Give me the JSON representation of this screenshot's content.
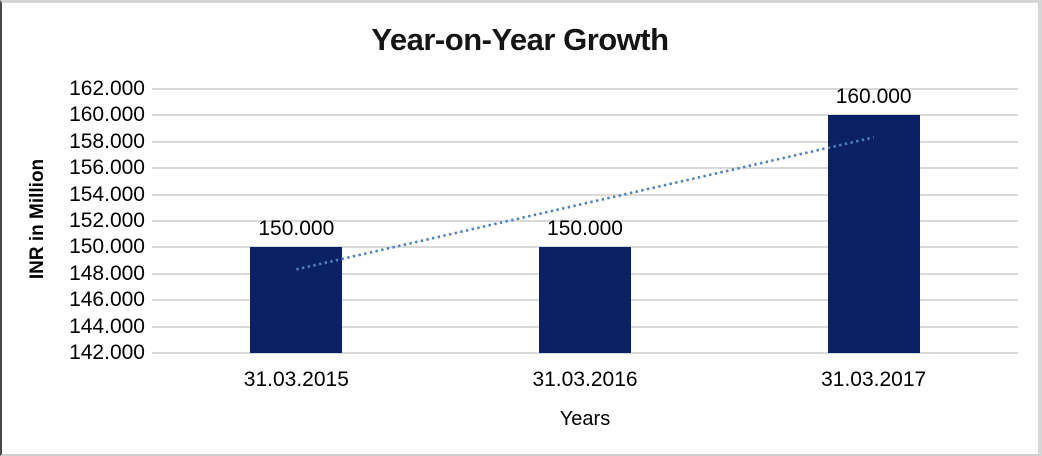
{
  "chart_data": {
    "type": "bar",
    "title": "Year-on-Year Growth",
    "xlabel": "Years",
    "ylabel": "INR in Million",
    "categories": [
      "31.03.2015",
      "31.03.2016",
      "31.03.2017"
    ],
    "values": [
      150000,
      150000,
      160000
    ],
    "data_labels": [
      "150.000",
      "150.000",
      "160.000"
    ],
    "ylim": [
      142000,
      162000
    ],
    "ytick_step": 2000,
    "ytick_labels": [
      "162.000",
      "160.000",
      "158.000",
      "156.000",
      "154.000",
      "152.000",
      "150.000",
      "148.000",
      "146.000",
      "144.000",
      "142.000"
    ],
    "grid": true,
    "legend": "none",
    "colors": {
      "bar": "#0a2265",
      "gridline": "#d9d9d9",
      "trendline": "#4f81bd",
      "text": "#000000"
    },
    "trendline": {
      "type": "linear",
      "style": "dotted",
      "color": "#4f81bd",
      "values": [
        148333,
        153333,
        158333
      ]
    }
  }
}
